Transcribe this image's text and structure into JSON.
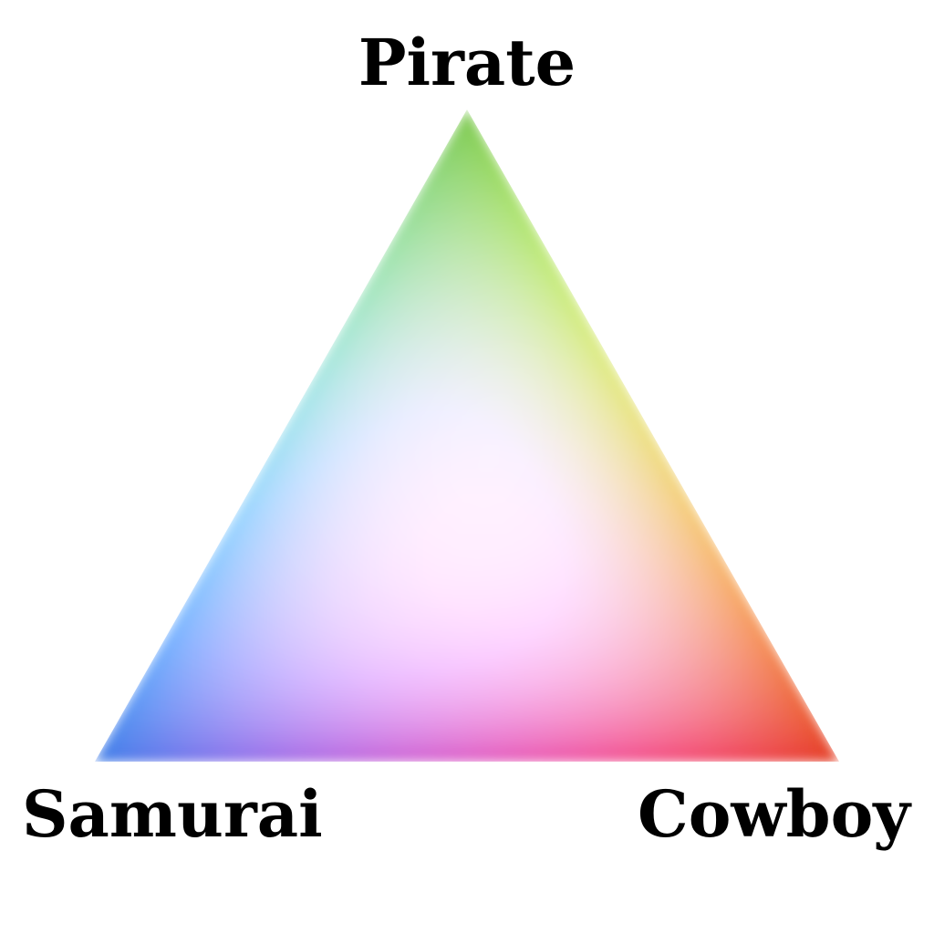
{
  "vertices": {
    "top": {
      "label": "Pirate",
      "color": "#7dc850"
    },
    "left": {
      "label": "Samurai",
      "color": "#3f7de6"
    },
    "right": {
      "label": "Cowboy",
      "color": "#e33d22"
    }
  },
  "edge_midpoints": {
    "left_edge": "#9ee1f0",
    "right_edge": "#ecde79",
    "bottom_edge": "#dc5ec6"
  },
  "center_color": "#d8d0ec"
}
